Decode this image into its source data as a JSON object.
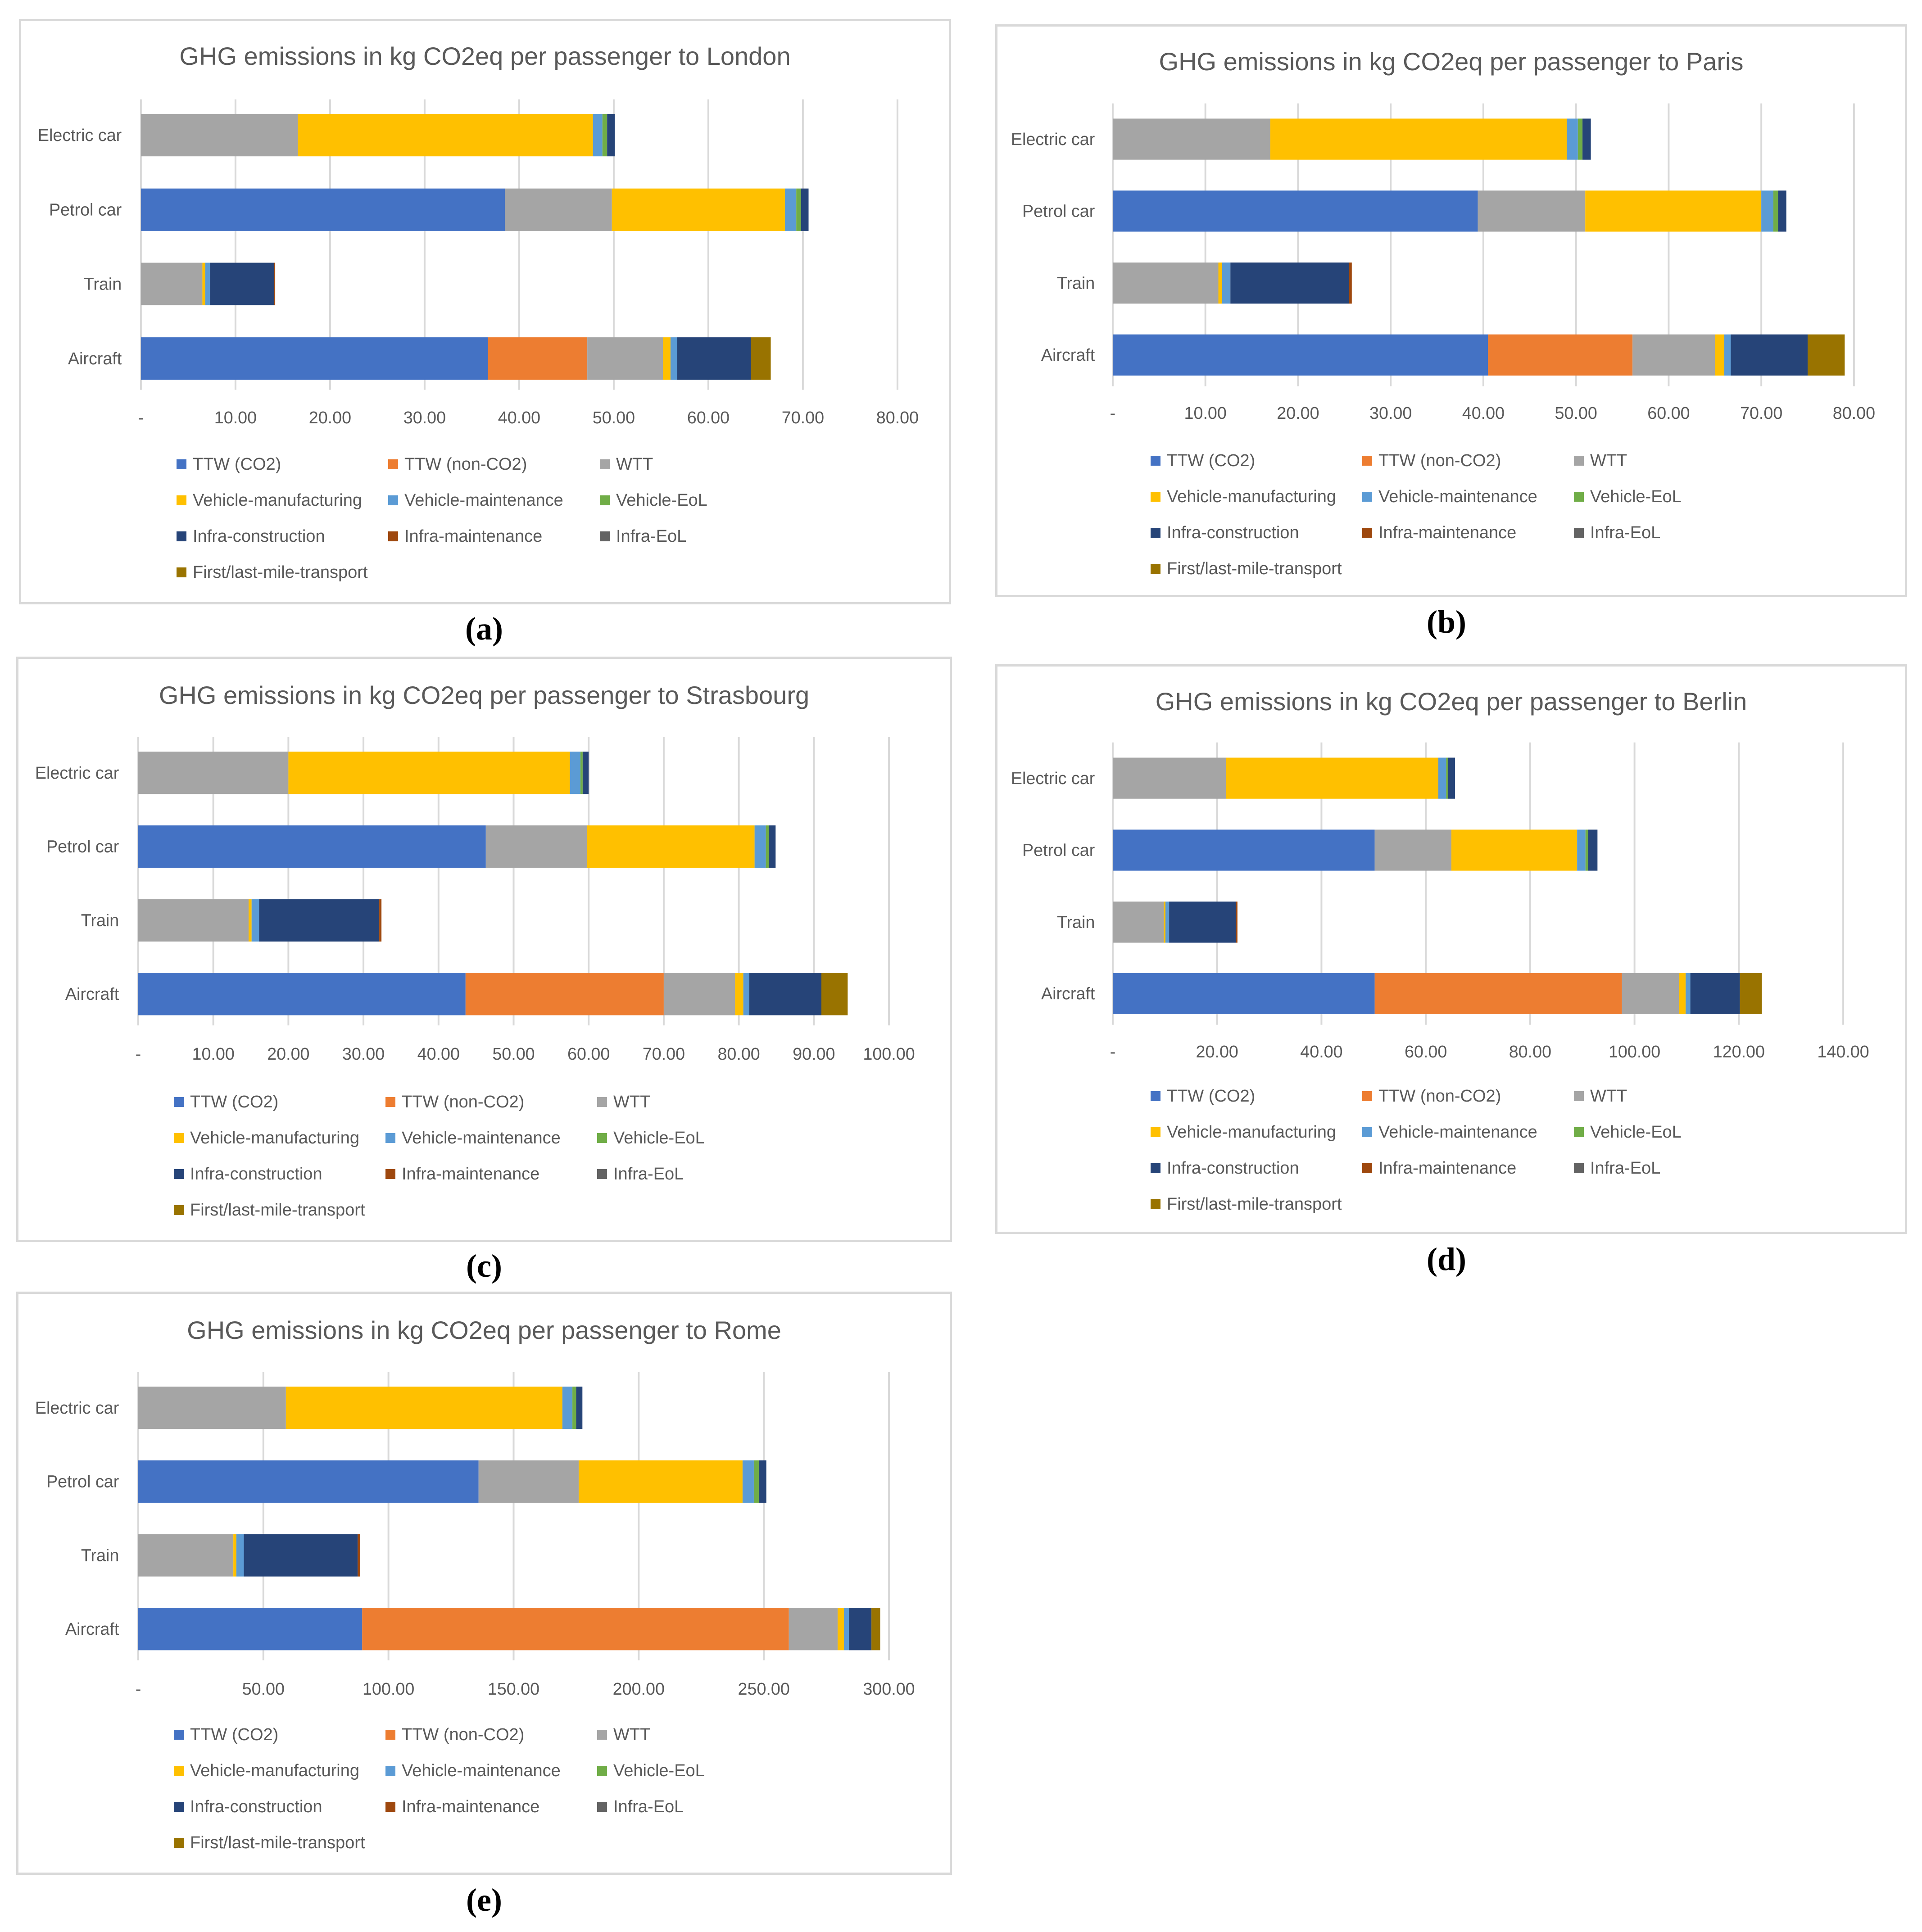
{
  "colors": {
    "TTW (CO2)": "#4472c4",
    "TTW (non-CO2)": "#ed7d31",
    "WTT": "#a5a5a5",
    "Vehicle-manufacturing": "#ffc000",
    "Vehicle-maintenance": "#5b9bd5",
    "Vehicle-EoL": "#70ad47",
    "Infra-construction": "#264478",
    "Infra-maintenance": "#9e480e",
    "Infra-EoL": "#636363",
    "First/last-mile-transport": "#997300"
  },
  "legend": [
    "TTW (CO2)",
    "TTW (non-CO2)",
    "WTT",
    "Vehicle-manufacturing",
    "Vehicle-maintenance",
    "Vehicle-EoL",
    "Infra-construction",
    "Infra-maintenance",
    "Infra-EoL",
    "First/last-mile-transport"
  ],
  "chart_data": [
    {
      "type": "bar",
      "orientation": "horizontal",
      "stacked": true,
      "panel": "(a)",
      "title": "GHG emissions in kg CO2eq per passenger to London",
      "categories": [
        "Electric car",
        "Petrol car",
        "Train",
        "Aircraft"
      ],
      "xlim": [
        0,
        80
      ],
      "ticks": [
        "-",
        "10.00",
        "20.00",
        "30.00",
        "40.00",
        "50.00",
        "60.00",
        "70.00",
        "80.00"
      ],
      "series": [
        {
          "name": "TTW (CO2)",
          "values": [
            0,
            38.5,
            0,
            36.7
          ]
        },
        {
          "name": "TTW (non-CO2)",
          "values": [
            0,
            0,
            0,
            10.5
          ]
        },
        {
          "name": "WTT",
          "values": [
            16.6,
            11.3,
            6.5,
            8.0
          ]
        },
        {
          "name": "Vehicle-manufacturing",
          "values": [
            31.2,
            18.3,
            0.3,
            0.8
          ]
        },
        {
          "name": "Vehicle-maintenance",
          "values": [
            1.0,
            1.2,
            0.5,
            0.7
          ]
        },
        {
          "name": "Vehicle-EoL",
          "values": [
            0.5,
            0.5,
            0,
            0
          ]
        },
        {
          "name": "Infra-construction",
          "values": [
            0.8,
            0.8,
            6.8,
            7.8
          ]
        },
        {
          "name": "Infra-maintenance",
          "values": [
            0,
            0,
            0.1,
            0
          ]
        },
        {
          "name": "Infra-EoL",
          "values": [
            0,
            0,
            0,
            0
          ]
        },
        {
          "name": "First/last-mile-transport",
          "values": [
            0,
            0,
            0,
            2.1
          ]
        }
      ]
    },
    {
      "type": "bar",
      "orientation": "horizontal",
      "stacked": true,
      "panel": "(b)",
      "title": "GHG emissions in kg CO2eq per passenger to Paris",
      "categories": [
        "Electric car",
        "Petrol car",
        "Train",
        "Aircraft"
      ],
      "xlim": [
        0,
        80
      ],
      "ticks": [
        "-",
        "10.00",
        "20.00",
        "30.00",
        "40.00",
        "50.00",
        "60.00",
        "70.00",
        "80.00"
      ],
      "series": [
        {
          "name": "TTW (CO2)",
          "values": [
            0,
            39.4,
            0,
            40.5
          ]
        },
        {
          "name": "TTW (non-CO2)",
          "values": [
            0,
            0,
            0,
            15.6
          ]
        },
        {
          "name": "WTT",
          "values": [
            17.0,
            11.6,
            11.4,
            8.9
          ]
        },
        {
          "name": "Vehicle-manufacturing",
          "values": [
            32.0,
            19.0,
            0.4,
            1.0
          ]
        },
        {
          "name": "Vehicle-maintenance",
          "values": [
            1.2,
            1.3,
            0.9,
            0.7
          ]
        },
        {
          "name": "Vehicle-EoL",
          "values": [
            0.5,
            0.5,
            0,
            0
          ]
        },
        {
          "name": "Infra-construction",
          "values": [
            0.9,
            0.9,
            12.8,
            8.3
          ]
        },
        {
          "name": "Infra-maintenance",
          "values": [
            0,
            0,
            0.3,
            0
          ]
        },
        {
          "name": "Infra-EoL",
          "values": [
            0,
            0,
            0,
            0
          ]
        },
        {
          "name": "First/last-mile-transport",
          "values": [
            0,
            0,
            0,
            4.0
          ]
        }
      ]
    },
    {
      "type": "bar",
      "orientation": "horizontal",
      "stacked": true,
      "panel": "(c)",
      "title": "GHG emissions in kg CO2eq per passenger to Strasbourg",
      "categories": [
        "Electric car",
        "Petrol car",
        "Train",
        "Aircraft"
      ],
      "xlim": [
        0,
        100
      ],
      "ticks": [
        "-",
        "10.00",
        "20.00",
        "30.00",
        "40.00",
        "50.00",
        "60.00",
        "70.00",
        "80.00",
        "90.00",
        "100.00"
      ],
      "series": [
        {
          "name": "TTW (CO2)",
          "values": [
            0,
            46.3,
            0,
            43.6
          ]
        },
        {
          "name": "TTW (non-CO2)",
          "values": [
            0,
            0,
            0,
            26.4
          ]
        },
        {
          "name": "WTT",
          "values": [
            20.0,
            13.5,
            14.7,
            9.5
          ]
        },
        {
          "name": "Vehicle-manufacturing",
          "values": [
            37.5,
            22.3,
            0.4,
            1.1
          ]
        },
        {
          "name": "Vehicle-maintenance",
          "values": [
            1.4,
            1.5,
            1.0,
            0.8
          ]
        },
        {
          "name": "Vehicle-EoL",
          "values": [
            0.3,
            0.4,
            0,
            0
          ]
        },
        {
          "name": "Infra-construction",
          "values": [
            0.8,
            0.9,
            16.0,
            9.6
          ]
        },
        {
          "name": "Infra-maintenance",
          "values": [
            0,
            0,
            0.3,
            0
          ]
        },
        {
          "name": "Infra-EoL",
          "values": [
            0,
            0,
            0,
            0
          ]
        },
        {
          "name": "First/last-mile-transport",
          "values": [
            0,
            0,
            0,
            3.5
          ]
        }
      ]
    },
    {
      "type": "bar",
      "orientation": "horizontal",
      "stacked": true,
      "panel": "(d)",
      "title": "GHG emissions in kg CO2eq per passenger to Berlin",
      "categories": [
        "Electric car",
        "Petrol car",
        "Train",
        "Aircraft"
      ],
      "xlim": [
        0,
        140
      ],
      "ticks": [
        "-",
        "20.00",
        "40.00",
        "60.00",
        "80.00",
        "100.00",
        "120.00",
        "140.00"
      ],
      "series": [
        {
          "name": "TTW (CO2)",
          "values": [
            0,
            50.2,
            0,
            50.2
          ]
        },
        {
          "name": "TTW (non-CO2)",
          "values": [
            0,
            0,
            0,
            47.4
          ]
        },
        {
          "name": "WTT",
          "values": [
            21.7,
            14.7,
            9.8,
            10.9
          ]
        },
        {
          "name": "Vehicle-manufacturing",
          "values": [
            40.7,
            24.1,
            0.3,
            1.3
          ]
        },
        {
          "name": "Vehicle-maintenance",
          "values": [
            1.5,
            1.6,
            0.7,
            0.9
          ]
        },
        {
          "name": "Vehicle-EoL",
          "values": [
            0.4,
            0.5,
            0,
            0
          ]
        },
        {
          "name": "Infra-construction",
          "values": [
            1.3,
            1.8,
            12.8,
            9.5
          ]
        },
        {
          "name": "Infra-maintenance",
          "values": [
            0,
            0,
            0.3,
            0
          ]
        },
        {
          "name": "Infra-EoL",
          "values": [
            0,
            0,
            0,
            0
          ]
        },
        {
          "name": "First/last-mile-transport",
          "values": [
            0,
            0,
            0,
            4.2
          ]
        }
      ]
    },
    {
      "type": "bar",
      "orientation": "horizontal",
      "stacked": true,
      "panel": "(e)",
      "title": "GHG emissions in kg CO2eq per passenger to Rome",
      "categories": [
        "Electric car",
        "Petrol car",
        "Train",
        "Aircraft"
      ],
      "xlim": [
        0,
        300
      ],
      "ticks": [
        "-",
        "50.00",
        "100.00",
        "150.00",
        "200.00",
        "250.00",
        "300.00"
      ],
      "series": [
        {
          "name": "TTW (CO2)",
          "values": [
            0,
            136.0,
            0,
            89.5
          ]
        },
        {
          "name": "TTW (non-CO2)",
          "values": [
            0,
            0,
            0,
            170.5
          ]
        },
        {
          "name": "WTT",
          "values": [
            59.0,
            40.0,
            38.0,
            19.5
          ]
        },
        {
          "name": "Vehicle-manufacturing",
          "values": [
            110.5,
            65.5,
            1.2,
            2.5
          ]
        },
        {
          "name": "Vehicle-maintenance",
          "values": [
            4.0,
            4.5,
            3.0,
            2.0
          ]
        },
        {
          "name": "Vehicle-EoL",
          "values": [
            1.5,
            2.0,
            0,
            0
          ]
        },
        {
          "name": "Infra-construction",
          "values": [
            2.5,
            3.0,
            45.5,
            9.0
          ]
        },
        {
          "name": "Infra-maintenance",
          "values": [
            0,
            0,
            1.0,
            0
          ]
        },
        {
          "name": "Infra-EoL",
          "values": [
            0,
            0,
            0,
            0
          ]
        },
        {
          "name": "First/last-mile-transport",
          "values": [
            0,
            0,
            0,
            3.5
          ]
        }
      ]
    }
  ]
}
